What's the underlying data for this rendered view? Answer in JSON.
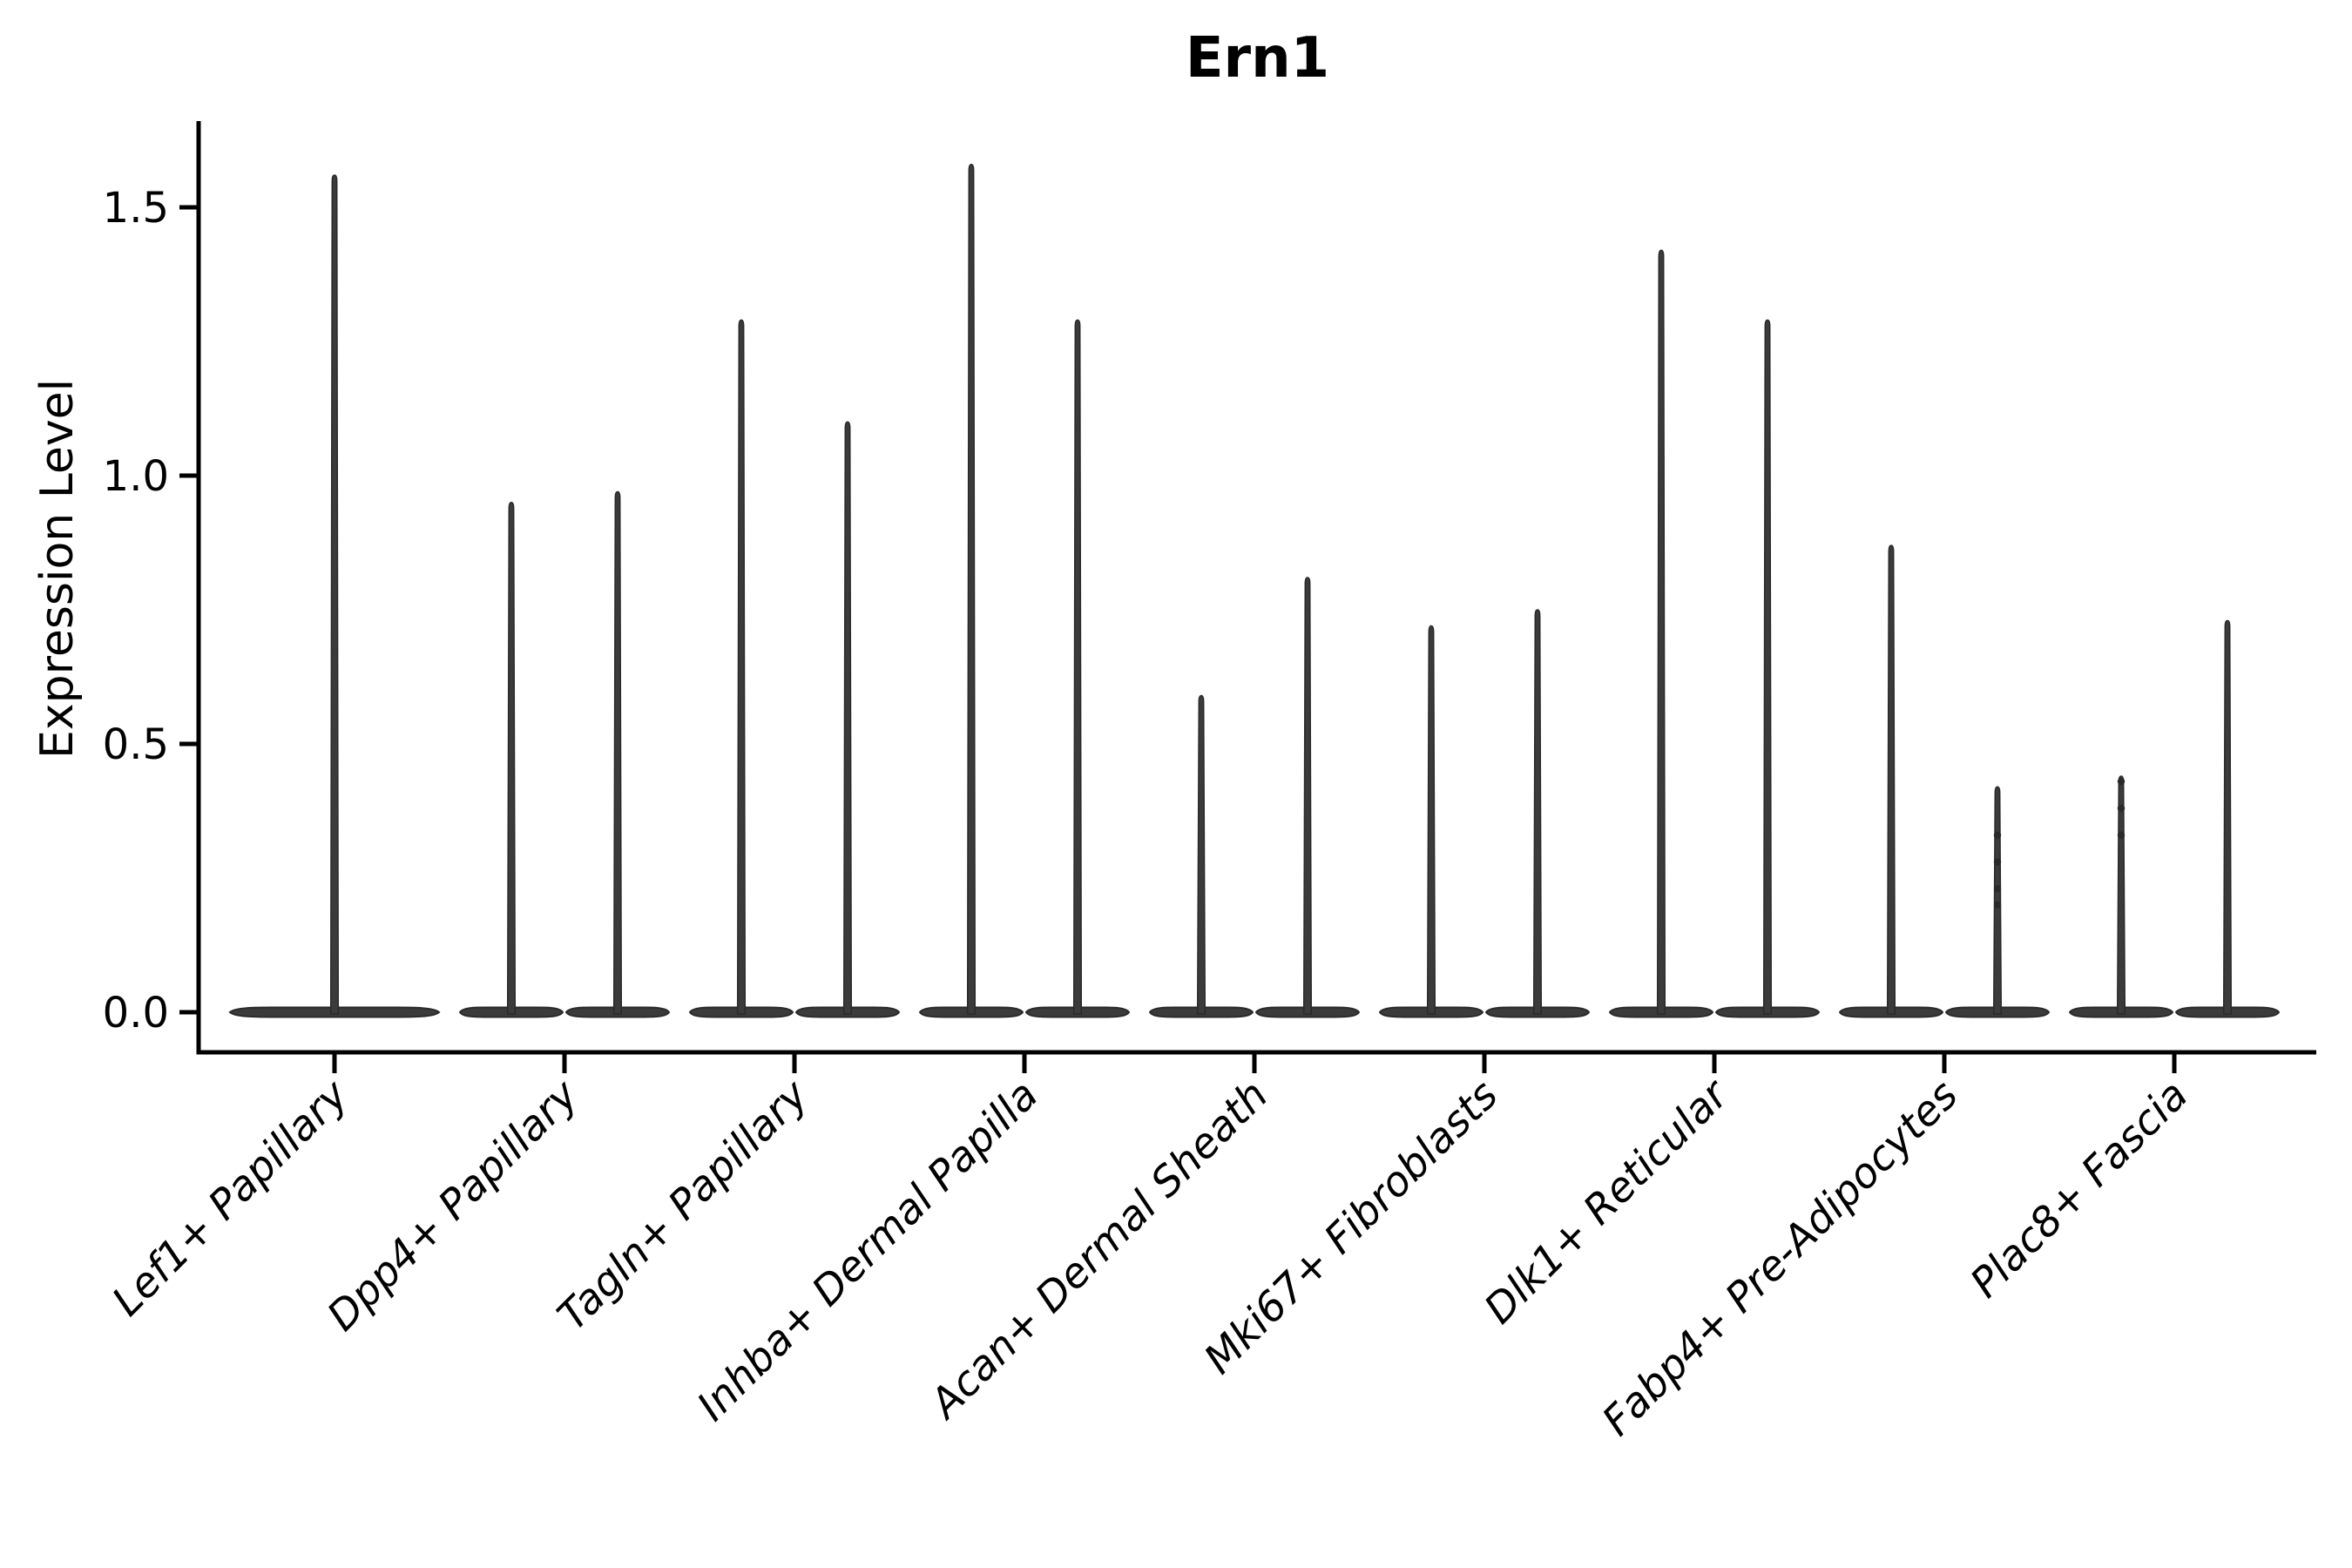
{
  "chart_data": {
    "type": "violin",
    "title": "Ern1",
    "ylabel": "Expression Level",
    "xlabel": "",
    "yticks": [
      "0.0",
      "0.5",
      "1.0",
      "1.5"
    ],
    "ytick_values": [
      0.0,
      0.5,
      1.0,
      1.5
    ],
    "ylim": [
      -0.075,
      1.66
    ],
    "grid": false,
    "legend": "none",
    "background_color": "#ffffff",
    "violin_fill_color": "#3b3b3b",
    "violin_edge_color": "#2a2a2a",
    "axis_color": "#000000",
    "categories": [
      "Lef1+ Papillary",
      "Dpp4+ Papillary",
      "Tagln+ Papillary",
      "Inhba+ Dermal Papilla",
      "Acan+ Dermal Sheath",
      "Mki67+ Fibroblasts",
      "Dlk1+ Reticular",
      "Fabp4+ Pre-Adipocytes",
      "Plac8+ Fascia"
    ],
    "violins": [
      {
        "category": "Lef1+ Papillary",
        "peak_values": [
          1.56
        ]
      },
      {
        "category": "Dpp4+ Papillary",
        "peak_values": [
          0.95,
          0.97
        ]
      },
      {
        "category": "Tagln+ Papillary",
        "peak_values": [
          1.29,
          1.1
        ]
      },
      {
        "category": "Inhba+ Dermal Papilla",
        "peak_values": [
          1.58,
          1.29
        ]
      },
      {
        "category": "Acan+ Dermal Sheath",
        "peak_values": [
          0.59,
          0.81
        ]
      },
      {
        "category": "Mki67+ Fibroblasts",
        "peak_values": [
          0.72,
          0.75
        ]
      },
      {
        "category": "Dlk1+ Reticular",
        "peak_values": [
          1.42,
          1.29
        ]
      },
      {
        "category": "Fabp4+ Pre-Adipocytes",
        "peak_values": [
          0.87,
          0.42
        ]
      },
      {
        "category": "Plac8+ Fascia",
        "peak_values": [
          0.44,
          0.73
        ]
      }
    ],
    "overlay_points": [
      {
        "category": "Fabp4+ Pre-Adipocytes",
        "violin_index": 1,
        "values": [
          0.33,
          0.28,
          0.23,
          0.2
        ]
      },
      {
        "category": "Plac8+ Fascia",
        "violin_index": 0,
        "values": [
          0.43,
          0.38,
          0.33
        ]
      }
    ],
    "note_all_violins_have_baseline_mass_at": 0.0
  }
}
